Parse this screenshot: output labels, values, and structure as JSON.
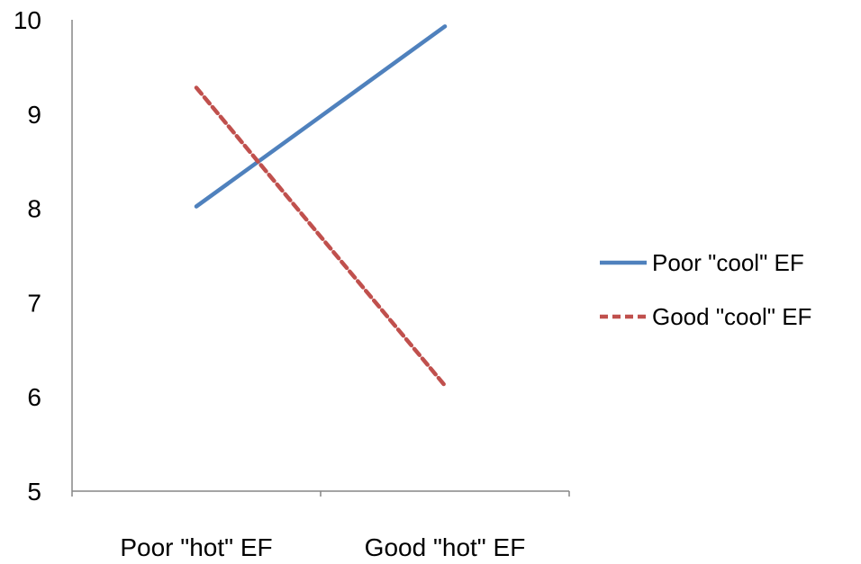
{
  "chart_data": {
    "type": "line",
    "categories": [
      "Poor \"hot\" EF",
      "Good \"hot\" EF"
    ],
    "series": [
      {
        "name": "Poor \"cool\" EF",
        "values": [
          8.02,
          9.93
        ],
        "color": "#4f81bd",
        "dash": "solid"
      },
      {
        "name": "Good \"cool\" EF",
        "values": [
          9.28,
          6.12
        ],
        "color": "#c0504d",
        "dash": "dashed"
      }
    ],
    "yticks": [
      "5",
      "6",
      "7",
      "8",
      "9",
      "10"
    ],
    "ylim": [
      5,
      10
    ],
    "grid": false,
    "legend_position": "right"
  }
}
